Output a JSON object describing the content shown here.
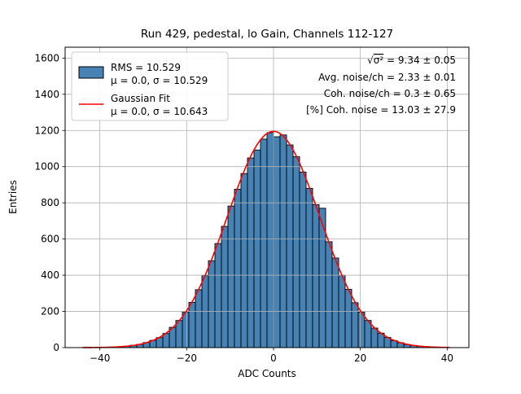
{
  "figure": {
    "title": "Run 429, pedestal, lo Gain, Channels 112-127",
    "xlabel": "ADC Counts",
    "ylabel": "Entries"
  },
  "legend": {
    "entry1_line1": "RMS = 10.529",
    "entry1_line2": "μ = 0.0, σ = 10.529",
    "entry2_line1": "Gaussian Fit",
    "entry2_line2": "μ = 0.0, σ = 10.643"
  },
  "annotation": {
    "line1_prefix": "√",
    "line1_body": "σ²",
    "line1_rest": " = 9.34 ± 0.05",
    "line2": "Avg. noise/ch = 2.33 ± 0.01",
    "line3": "Coh. noise/ch = 0.3 ± 0.65",
    "line4": "[%] Coh. noise = 13.03 ± 27.9"
  },
  "colors": {
    "bar_fill": "#4682b4",
    "bar_edge": "#000000",
    "fit_line": "#ff0000",
    "grid": "#b0b0b0",
    "frame": "#000000"
  },
  "chart_data": {
    "type": "bar",
    "subtype": "histogram",
    "title": "Run 429, pedestal, lo Gain, Channels 112-127",
    "xlabel": "ADC Counts",
    "ylabel": "Entries",
    "xlim": [
      -48,
      45
    ],
    "ylim": [
      0,
      1660
    ],
    "xticks": [
      -40,
      -20,
      0,
      20,
      40
    ],
    "yticks": [
      0,
      200,
      400,
      600,
      800,
      1000,
      1200,
      1400,
      1600
    ],
    "grid": true,
    "legend_position": "upper left",
    "bin_range": [
      -45,
      45
    ],
    "bin_width": 1.5,
    "bin_centers_start": -44.25,
    "counts": [
      0,
      1,
      0,
      1,
      2,
      3,
      5,
      8,
      13,
      18,
      28,
      40,
      55,
      78,
      112,
      150,
      197,
      250,
      320,
      398,
      480,
      575,
      670,
      782,
      875,
      962,
      1048,
      1092,
      1152,
      1188,
      1165,
      1175,
      1120,
      1055,
      970,
      880,
      790,
      770,
      585,
      495,
      400,
      322,
      248,
      196,
      150,
      108,
      80,
      56,
      39,
      27,
      17,
      12,
      8,
      5,
      3,
      1,
      1,
      0,
      0,
      0
    ],
    "gaussian_fit": {
      "mu": 0.0,
      "sigma": 10.643,
      "amplitude": 1195,
      "x_start": -44,
      "x_end": 40.5
    },
    "stats": {
      "rms": 10.529,
      "hist_mu": 0.0,
      "hist_sigma": 10.529,
      "fit_mu": 0.0,
      "fit_sigma": 10.643,
      "sqrt_sigma2": "9.34 ± 0.05",
      "avg_noise_per_ch": "2.33 ± 0.01",
      "coh_noise_per_ch": "0.3 ± 0.65",
      "pct_coh_noise": "13.03 ± 27.9"
    }
  }
}
